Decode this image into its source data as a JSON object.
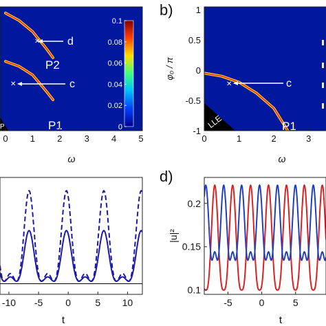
{
  "chart_data": [
    {
      "panel": "a",
      "type": "heatmap",
      "title": "",
      "xlabel": "ω",
      "ylabel": "",
      "xlim": [
        0,
        5
      ],
      "ylim": [
        -1,
        1
      ],
      "x_ticks": [
        "0",
        "1",
        "2",
        "3",
        "4",
        "5"
      ],
      "colorbar": {
        "range": [
          0,
          0.1
        ],
        "ticks": [
          "0",
          "0.02",
          "0.04",
          "0.06",
          "0.08",
          "0.1"
        ],
        "colors": [
          "#00008f",
          "#0040ff",
          "#00c0ff",
          "#40ff80",
          "#ffe000",
          "#ff4000",
          "#800000"
        ]
      },
      "background_color": "#00189e",
      "branches": [
        {
          "name": "P2",
          "points": [
            [
              0,
              0.9
            ],
            [
              0.5,
              0.78
            ],
            [
              1.0,
              0.6
            ],
            [
              1.5,
              0.33
            ],
            [
              1.75,
              0.18
            ]
          ]
        },
        {
          "name": "P1",
          "points": [
            [
              0,
              0.12
            ],
            [
              0.5,
              0.04
            ],
            [
              1.0,
              -0.1
            ],
            [
              1.5,
              -0.36
            ],
            [
              1.75,
              -0.5
            ]
          ]
        }
      ],
      "markers": [
        {
          "label": "d",
          "point": [
            1.5,
            0.33
          ]
        },
        {
          "label": "c",
          "point": [
            0.7,
            -0.05
          ]
        }
      ],
      "region_label": "P"
    },
    {
      "panel": "b",
      "type": "heatmap",
      "title": "",
      "xlabel": "ω",
      "ylabel": "φ₀ / π",
      "xlim": [
        0,
        3.5
      ],
      "ylim": [
        -1,
        1
      ],
      "x_ticks": [
        "0",
        "1",
        "2",
        "3"
      ],
      "y_ticks": [
        "1",
        "0.5",
        "0",
        "-0.5",
        "-1"
      ],
      "background_color": "#00189e",
      "branches": [
        {
          "name": "P1",
          "points": [
            [
              0,
              -0.05
            ],
            [
              0.5,
              -0.1
            ],
            [
              1.0,
              -0.2
            ],
            [
              1.5,
              -0.38
            ],
            [
              2.0,
              -0.63
            ],
            [
              2.4,
              -1.0
            ]
          ]
        }
      ],
      "markers": [
        {
          "label": "c",
          "point": [
            0.9,
            -0.18
          ]
        }
      ],
      "region_label": "LLE"
    },
    {
      "panel": "c",
      "type": "line",
      "title": "",
      "xlabel": "t",
      "ylabel": "",
      "xlim": [
        -11.5,
        12.5
      ],
      "ylim": [
        0.08,
        0.3
      ],
      "x_ticks": [
        "-10",
        "-5",
        "0",
        "5",
        "10"
      ],
      "series": [
        {
          "style": "solid",
          "color": "#1a1aa6",
          "period": 6.3,
          "amplitude_low": 0.101,
          "amplitude_high": 0.2
        },
        {
          "style": "dashed",
          "color": "#1a1aa6",
          "period": 6.3,
          "amplitude_low": 0.098,
          "amplitude_high": 0.275
        },
        {
          "style": "solid",
          "color": "#000000",
          "constant": 0.1
        }
      ]
    },
    {
      "panel": "d",
      "type": "line",
      "title": "",
      "xlabel": "t",
      "ylabel": "|u|²",
      "xlim": [
        -8.5,
        9.5
      ],
      "ylim": [
        0.095,
        0.23
      ],
      "x_ticks": [
        "-5",
        "0",
        "5"
      ],
      "y_ticks": [
        "0.1",
        "0.15",
        "0.2"
      ],
      "series": [
        {
          "style": "solid",
          "color": "#e02020",
          "period": 2.65,
          "low": 0.1,
          "high": 0.221,
          "shift": 0.0
        },
        {
          "style": "solid",
          "color": "#1f3fbf",
          "period": 2.65,
          "low": 0.1,
          "high": 0.221,
          "shift": 1.325,
          "secondary_peak": 0.149
        }
      ]
    }
  ],
  "panel_labels": {
    "b": "b)",
    "d": "d)"
  },
  "annotations": {
    "p1": "P1",
    "p2": "P2",
    "c": "c",
    "d": "d"
  }
}
